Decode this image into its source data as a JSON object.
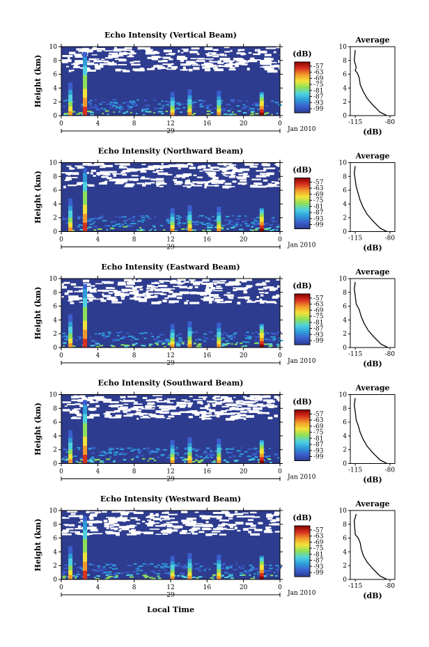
{
  "chart_data": [
    {
      "type": "heatmap",
      "title": "Echo Intensity (Vertical Beam)",
      "ylabel": "Height (km)",
      "ylim": [
        0,
        10
      ],
      "xlim": [
        0,
        24
      ],
      "x_ticks": [
        "0",
        "4",
        "8",
        "12",
        "16",
        "20",
        "0"
      ],
      "y_ticks": [
        "0",
        "2",
        "4",
        "6",
        "8",
        "10"
      ],
      "date_label": "29",
      "month_label": "Jan 2010",
      "colorbar": {
        "label": "(dB)",
        "ticks": [
          "-57",
          "-63",
          "-69",
          "-75",
          "-81",
          "-87",
          "-93",
          "-99"
        ]
      },
      "profile": {
        "type": "line",
        "title": "Average",
        "xlabel": "(dB)",
        "x_ticks": [
          "-115",
          "-80"
        ],
        "y_ticks": [
          "0",
          "2",
          "4",
          "6",
          "8",
          "10"
        ],
        "xlim": [
          -120,
          -75
        ],
        "ylim": [
          0,
          10
        ],
        "x": [
          -83,
          -90,
          -97,
          -103,
          -107,
          -110,
          -111,
          -113,
          -115,
          -114,
          -116,
          -115
        ],
        "y": [
          0,
          0.5,
          1.5,
          2.5,
          3.5,
          4.5,
          5.5,
          6.2,
          6.5,
          7,
          8,
          9.5
        ]
      }
    },
    {
      "type": "heatmap",
      "title": "Echo Intensity (Northward Beam)",
      "ylabel": "Height (km)",
      "ylim": [
        0,
        10
      ],
      "xlim": [
        0,
        24
      ],
      "x_ticks": [
        "0",
        "4",
        "8",
        "12",
        "16",
        "20",
        "0"
      ],
      "y_ticks": [
        "0",
        "2",
        "4",
        "6",
        "8",
        "10"
      ],
      "date_label": "29",
      "month_label": "Jan 2010",
      "colorbar": {
        "label": "(dB)",
        "ticks": [
          "-57",
          "-63",
          "-69",
          "-75",
          "-81",
          "-87",
          "-93",
          "-99"
        ]
      },
      "profile": {
        "type": "line",
        "title": "Average",
        "xlabel": "(dB)",
        "x_ticks": [
          "-115",
          "-80"
        ],
        "y_ticks": [
          "0",
          "2",
          "4",
          "6",
          "8",
          "10"
        ],
        "xlim": [
          -120,
          -75
        ],
        "ylim": [
          0,
          10
        ],
        "x": [
          -83,
          -90,
          -97,
          -103,
          -107,
          -110,
          -112,
          -114,
          -115,
          -116,
          -115
        ],
        "y": [
          0,
          0.5,
          1.5,
          2.5,
          3.5,
          4.5,
          5.5,
          6.5,
          7.5,
          8.5,
          9.5
        ]
      }
    },
    {
      "type": "heatmap",
      "title": "Echo Intensity (Eastward Beam)",
      "ylabel": "Height (km)",
      "ylim": [
        0,
        10
      ],
      "xlim": [
        0,
        24
      ],
      "x_ticks": [
        "0",
        "4",
        "8",
        "12",
        "16",
        "20",
        "0"
      ],
      "y_ticks": [
        "0",
        "2",
        "4",
        "6",
        "8",
        "10"
      ],
      "date_label": "29",
      "month_label": "Jan 2010",
      "colorbar": {
        "label": "(dB)",
        "ticks": [
          "-57",
          "-63",
          "-69",
          "-75",
          "-81",
          "-87",
          "-93",
          "-99"
        ]
      },
      "profile": {
        "type": "line",
        "title": "Average",
        "xlabel": "(dB)",
        "x_ticks": [
          "-115",
          "-80"
        ],
        "y_ticks": [
          "0",
          "2",
          "4",
          "6",
          "8",
          "10"
        ],
        "xlim": [
          -120,
          -75
        ],
        "ylim": [
          0,
          10
        ],
        "x": [
          -82,
          -89,
          -96,
          -102,
          -106,
          -109,
          -111,
          -114,
          -115,
          -116,
          -115
        ],
        "y": [
          0,
          0.5,
          1.5,
          2.5,
          3.5,
          4.5,
          5.5,
          6.3,
          7.5,
          8.5,
          9.5
        ]
      }
    },
    {
      "type": "heatmap",
      "title": "Echo Intensity (Southward Beam)",
      "ylabel": "Height (km)",
      "ylim": [
        0,
        10
      ],
      "xlim": [
        0,
        24
      ],
      "x_ticks": [
        "0",
        "4",
        "8",
        "12",
        "16",
        "20",
        "0"
      ],
      "y_ticks": [
        "0",
        "2",
        "4",
        "6",
        "8",
        "10"
      ],
      "date_label": "29",
      "month_label": "Jan 2010",
      "colorbar": {
        "label": "(dB)",
        "ticks": [
          "-57",
          "-63",
          "-69",
          "-75",
          "-81",
          "-87",
          "-93",
          "-99"
        ]
      },
      "profile": {
        "type": "line",
        "title": "Average",
        "xlabel": "(dB)",
        "x_ticks": [
          "-115",
          "-80"
        ],
        "y_ticks": [
          "0",
          "2",
          "4",
          "6",
          "8",
          "10"
        ],
        "xlim": [
          -120,
          -75
        ],
        "ylim": [
          0,
          10
        ],
        "x": [
          -83,
          -90,
          -97,
          -103,
          -107,
          -110,
          -112,
          -114,
          -115,
          -116,
          -115
        ],
        "y": [
          0,
          0.5,
          1.5,
          2.5,
          3.5,
          4.5,
          5.5,
          6.3,
          7.5,
          8.5,
          9.5
        ]
      }
    },
    {
      "type": "heatmap",
      "title": "Echo Intensity (Westward Beam)",
      "ylabel": "Height (km)",
      "ylim": [
        0,
        10
      ],
      "xlim": [
        0,
        24
      ],
      "x_ticks": [
        "0",
        "4",
        "8",
        "12",
        "16",
        "20",
        "0"
      ],
      "y_ticks": [
        "0",
        "2",
        "4",
        "6",
        "8",
        "10"
      ],
      "date_label": "29",
      "month_label": "Jan 2010",
      "colorbar": {
        "label": "(dB)",
        "ticks": [
          "-57",
          "-63",
          "-69",
          "-75",
          "-81",
          "-87",
          "-93",
          "-99"
        ]
      },
      "profile": {
        "type": "line",
        "title": "Average",
        "xlabel": "(dB)",
        "x_ticks": [
          "-115",
          "-80"
        ],
        "y_ticks": [
          "0",
          "2",
          "4",
          "6",
          "8",
          "10"
        ],
        "xlim": [
          -120,
          -75
        ],
        "ylim": [
          0,
          10
        ],
        "x": [
          -83,
          -90,
          -97,
          -103,
          -107,
          -109,
          -110,
          -112,
          -115,
          -116,
          -114
        ],
        "y": [
          0,
          0.5,
          1.5,
          2.5,
          3.5,
          4.5,
          5.3,
          6,
          6.5,
          8.5,
          9.5
        ]
      }
    }
  ],
  "xlabel": "Local Time",
  "colors": {
    "background": "#2e3c8f",
    "gap": "#ffffff",
    "scale": [
      "#2e3c8f",
      "#3a5fcd",
      "#2f9bd9",
      "#4fd1e0",
      "#8ee05a",
      "#f2e33a",
      "#f39a2a",
      "#d7301f",
      "#8b0000"
    ]
  }
}
